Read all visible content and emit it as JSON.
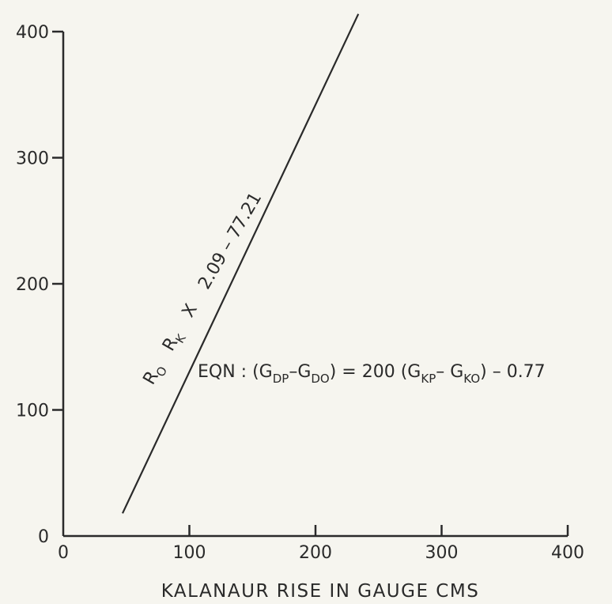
{
  "chart_data": {
    "type": "line",
    "title": "",
    "xlabel": "KALANAUR RISE IN GAUGE CMS",
    "ylabel": "",
    "xlim": [
      0,
      400
    ],
    "ylim": [
      0,
      400
    ],
    "x_ticks": [
      "0",
      "100",
      "200",
      "300",
      "400"
    ],
    "y_ticks": [
      "0",
      "100",
      "200",
      "300",
      "400"
    ],
    "grid": false,
    "legend": "none",
    "series": [
      {
        "x": [
          47,
          234
        ],
        "y": [
          18,
          414
        ]
      }
    ],
    "annotations": {
      "line_label": {
        "r_o": "R",
        "r_o_sub": "O",
        "r_k": "R",
        "r_k_sub": "K",
        "times": "X",
        "values": "2.09 – 77.21"
      },
      "equation": {
        "prefix": "EQN : (G",
        "sub1": "DP",
        "minus1": "–G",
        "sub2": "DO",
        "mid": ") = 200 (G",
        "sub3": "KP",
        "minus2": "– G",
        "sub4": "KO",
        "suffix": ") – 0.77"
      }
    },
    "colors": {
      "ink": "#2a2a2a",
      "background": "#f6f5ef"
    }
  }
}
